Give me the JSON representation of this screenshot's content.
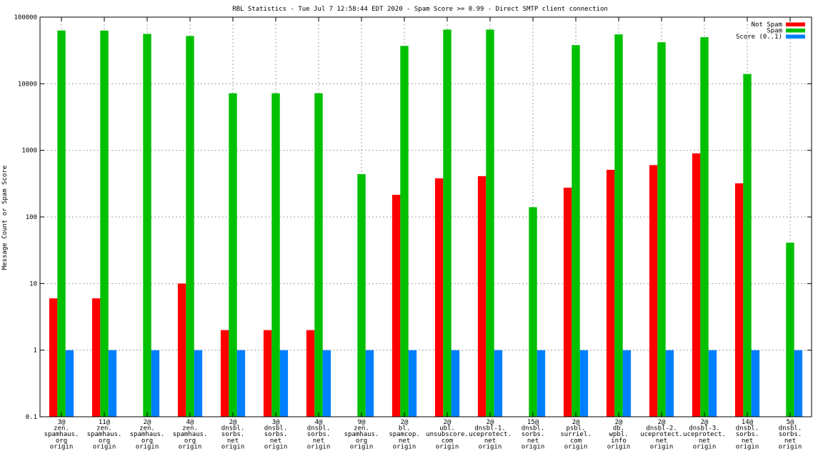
{
  "chart_data": {
    "type": "bar",
    "title": "RBL Statistics - Tue Jul  7 12:58:44 EDT 2020 - Spam Score >= 0.99 - Direct SMTP client connection",
    "ylabel": "Message Count or Spam Score",
    "xlabel": "",
    "yscale": "log",
    "ylim": [
      0.1,
      100000
    ],
    "yticks": [
      "0.1",
      "1",
      "10",
      "100",
      "1000",
      "10000",
      "100000"
    ],
    "grid": true,
    "legend_position": "top-right",
    "categories": [
      [
        "3@",
        "zen.",
        "spamhaus.",
        "org",
        "origin"
      ],
      [
        "11@",
        "zen.",
        "spamhaus.",
        "org",
        "origin"
      ],
      [
        "2@",
        "zen.",
        "spamhaus.",
        "org",
        "origin"
      ],
      [
        "4@",
        "zen.",
        "spamhaus.",
        "org",
        "origin"
      ],
      [
        "2@",
        "dnsbl.",
        "sorbs.",
        "net",
        "origin"
      ],
      [
        "3@",
        "dnsbl.",
        "sorbs.",
        "net",
        "origin"
      ],
      [
        "4@",
        "dnsbl.",
        "sorbs.",
        "net",
        "origin"
      ],
      [
        "9@",
        "zen.",
        "spamhaus.",
        "org",
        "origin"
      ],
      [
        "2@",
        "bl.",
        "spamcop.",
        "net",
        "origin"
      ],
      [
        "2@",
        "ubl.",
        "unsubscore.",
        "com",
        "origin"
      ],
      [
        "2@",
        "dnsbl-1.",
        "uceprotect.",
        "net",
        "origin"
      ],
      [
        "15@",
        "dnsbl.",
        "sorbs.",
        "net",
        "origin"
      ],
      [
        "2@",
        "psbl.",
        "surriel.",
        "com",
        "origin"
      ],
      [
        "2@",
        "db.",
        "wpbl.",
        "info",
        "origin"
      ],
      [
        "2@",
        "dnsbl-2.",
        "uceprotect.",
        "net",
        "origin"
      ],
      [
        "2@",
        "dnsbl-3.",
        "uceprotect.",
        "net",
        "origin"
      ],
      [
        "14@",
        "dnsbl.",
        "sorbs.",
        "net",
        "origin"
      ],
      [
        "5@",
        "dnsbl.",
        "sorbs.",
        "net",
        "origin"
      ]
    ],
    "series": [
      {
        "name": "Not Spam",
        "color": "#ff0000",
        "values": [
          6,
          6,
          0,
          10,
          2,
          2,
          2,
          0,
          215,
          380,
          410,
          0,
          275,
          510,
          600,
          900,
          320,
          0
        ]
      },
      {
        "name": "Spam",
        "color": "#00c000",
        "values": [
          63000,
          63000,
          56000,
          52000,
          7200,
          7200,
          7200,
          440,
          37000,
          65000,
          65000,
          140,
          38000,
          55000,
          42000,
          50000,
          14000,
          41
        ]
      },
      {
        "name": "Score (0..1)",
        "color": "#0080ff",
        "values": [
          1,
          1,
          1,
          1,
          1,
          1,
          1,
          1,
          1,
          1,
          1,
          1,
          1,
          1,
          1,
          1,
          1,
          1
        ]
      }
    ]
  }
}
